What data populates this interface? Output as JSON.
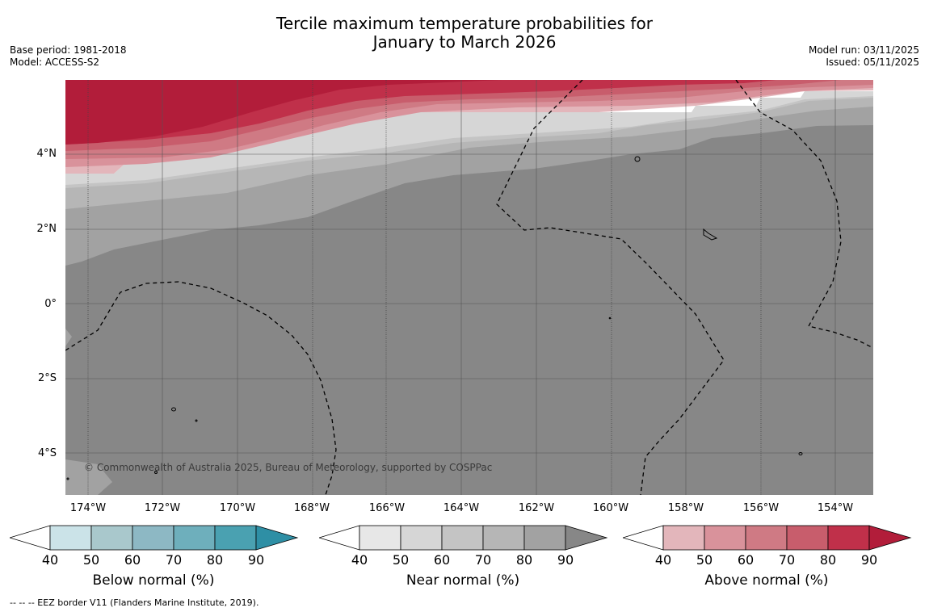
{
  "title_line1": "Tercile maximum temperature probabilities for",
  "title_line2": "January to March 2026",
  "base_period": "Base period: 1981-2018",
  "model": "Model: ACCESS-S2",
  "model_run": "Model run: 03/11/2025",
  "issued": "Issued: 05/11/2025",
  "latitude_labels": [
    "4°N",
    "2°N",
    "0°",
    "2°S",
    "4°S"
  ],
  "longitude_labels": [
    "174°W",
    "172°W",
    "170°W",
    "168°W",
    "166°W",
    "164°W",
    "162°W",
    "160°W",
    "158°W",
    "156°W",
    "154°W"
  ],
  "copyright": "© Commonwealth of Australia 2025, Bureau of Meteorology, supported by COSPPac",
  "colorbars": [
    {
      "label": "Below normal (%)",
      "ticks": [
        "40",
        "50",
        "60",
        "70",
        "80",
        "90"
      ],
      "colors": [
        "#cbe3e8",
        "#a9c8cc",
        "#8db8c4",
        "#6eafbc",
        "#4aa1b1",
        "#2e8fa5"
      ]
    },
    {
      "label": "Near normal (%)",
      "ticks": [
        "40",
        "50",
        "60",
        "70",
        "80",
        "90"
      ],
      "colors": [
        "#e7e7e7",
        "#d6d6d6",
        "#c4c4c4",
        "#b6b6b6",
        "#a2a2a2",
        "#878787"
      ]
    },
    {
      "label": "Above normal (%)",
      "ticks": [
        "40",
        "50",
        "60",
        "70",
        "80",
        "90"
      ],
      "colors": [
        "#e3b6bb",
        "#d9929b",
        "#cf7a84",
        "#c85d6c",
        "#c0304a",
        "#b21d3a"
      ]
    }
  ],
  "footnote": "--  --  -- EEZ border V11 (Flanders Marine Institute, 2019)."
}
